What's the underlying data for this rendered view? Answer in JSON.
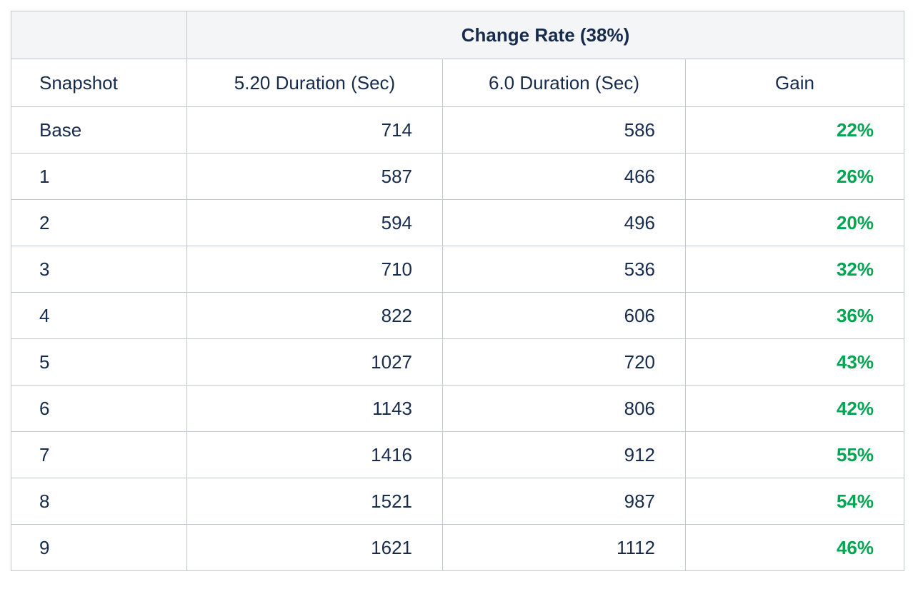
{
  "table": {
    "group_header": "Change Rate (38%)",
    "columns": [
      "Snapshot",
      "5.20 Duration (Sec)",
      "6.0 Duration (Sec)",
      "Gain"
    ],
    "rows": [
      {
        "snapshot": "Base",
        "d520": "714",
        "d60": "586",
        "gain": "22%"
      },
      {
        "snapshot": "1",
        "d520": "587",
        "d60": "466",
        "gain": "26%"
      },
      {
        "snapshot": "2",
        "d520": "594",
        "d60": "496",
        "gain": "20%"
      },
      {
        "snapshot": "3",
        "d520": "710",
        "d60": "536",
        "gain": "32%"
      },
      {
        "snapshot": "4",
        "d520": "822",
        "d60": "606",
        "gain": "36%"
      },
      {
        "snapshot": "5",
        "d520": "1027",
        "d60": "720",
        "gain": "43%"
      },
      {
        "snapshot": "6",
        "d520": "1143",
        "d60": "806",
        "gain": "42%"
      },
      {
        "snapshot": "7",
        "d520": "1416",
        "d60": "912",
        "gain": "55%"
      },
      {
        "snapshot": "8",
        "d520": "1521",
        "d60": "987",
        "gain": "54%"
      },
      {
        "snapshot": "9",
        "d520": "1621",
        "d60": "1112",
        "gain": "46%"
      }
    ]
  },
  "colors": {
    "header_bg": "#f4f5f7",
    "text": "#172b4d",
    "gain": "#00a650",
    "border": "#c1c7d0"
  }
}
